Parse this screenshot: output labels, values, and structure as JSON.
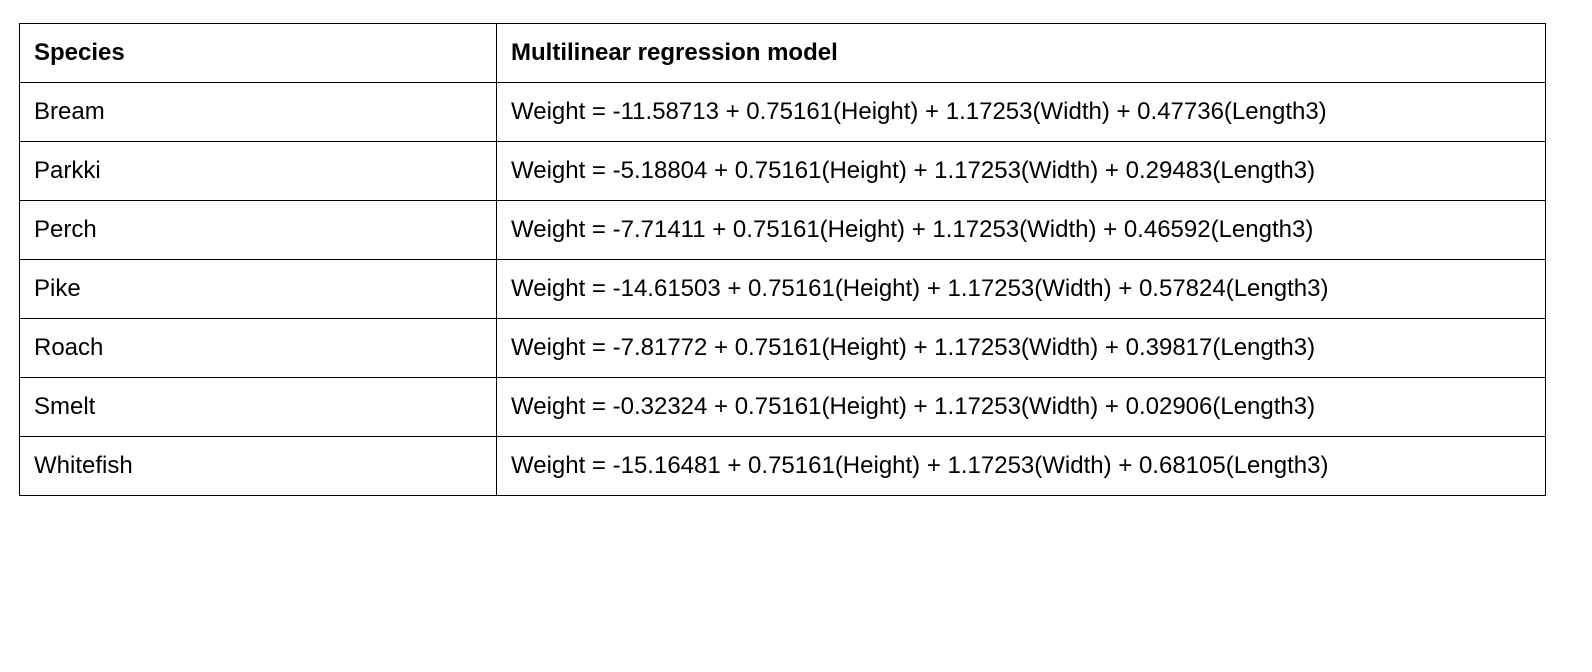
{
  "table": {
    "headers": {
      "species": "Species",
      "model": "Multilinear regression model"
    },
    "rows": [
      {
        "species": "Bream",
        "model": "Weight = -11.58713 + 0.75161(Height) + 1.17253(Width) + 0.47736(Length3)"
      },
      {
        "species": "Parkki",
        "model": "Weight = -5.18804 + 0.75161(Height) + 1.17253(Width) + 0.29483(Length3)"
      },
      {
        "species": "Perch",
        "model": "Weight = -7.71411 + 0.75161(Height) + 1.17253(Width) + 0.46592(Length3)"
      },
      {
        "species": "Pike",
        "model": "Weight = -14.61503 + 0.75161(Height) + 1.17253(Width) + 0.57824(Length3)"
      },
      {
        "species": "Roach",
        "model": "Weight = -7.81772 + 0.75161(Height) + 1.17253(Width) + 0.39817(Length3)"
      },
      {
        "species": "Smelt",
        "model": "Weight = -0.32324 + 0.75161(Height) + 1.17253(Width) + 0.02906(Length3)"
      },
      {
        "species": "Whitefish",
        "model": "Weight = -15.16481 + 0.75161(Height) + 1.17253(Width) + 0.68105(Length3)"
      }
    ]
  }
}
